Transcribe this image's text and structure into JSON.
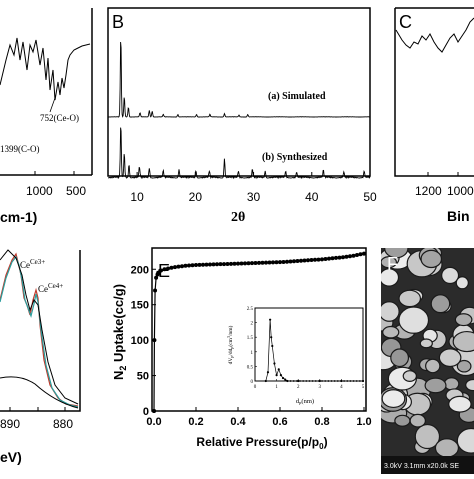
{
  "colors": {
    "axis": "#000000",
    "series_black": "#000000",
    "series_teal": "#2a9d9d",
    "series_red": "#c0392b",
    "sem_bg": "#2b2b2b"
  },
  "panels": {
    "a": {
      "annotations": [
        "752(Ce-O)",
        "1399(C-O)"
      ],
      "x_ticks": [
        "1000",
        "500"
      ],
      "x_label_partial": "cm-1)"
    },
    "b": {
      "letter": "B",
      "series_labels": [
        "(a) Simulated",
        "(b) Synthesized"
      ],
      "x_ticks": [
        "10",
        "20",
        "30",
        "40",
        "50"
      ],
      "x_label": "2θ"
    },
    "c": {
      "letter": "C",
      "x_ticks": [
        "1200",
        "1000"
      ],
      "x_label_partial": "Bin"
    },
    "d": {
      "peak_labels": [
        "Ce3+",
        "Ce4+"
      ],
      "x_ticks": [
        "890",
        "880"
      ],
      "x_label_partial": "eV)"
    },
    "e": {
      "letter": "E",
      "y_label": "N2 Uptake(cc/g)",
      "x_label": "Relative Pressure(p/p0)",
      "y_ticks": [
        "0",
        "50",
        "100",
        "150",
        "200"
      ],
      "x_ticks": [
        "0.0",
        "0.2",
        "0.4",
        "0.6",
        "0.8",
        "1.0"
      ],
      "inset": {
        "y_label": "dVp/ddp(cm3/nm)",
        "x_label": "dp(nm)",
        "y_ticks": [
          "0",
          "0.5",
          "1",
          "1.5",
          "2",
          "2.5"
        ],
        "x_ticks": [
          "0",
          "1",
          "2",
          "3",
          "4",
          "5"
        ]
      }
    },
    "f": {
      "letter": "F",
      "caption": "3.0kV 3.1mm x20.0k SE"
    }
  },
  "chart_data": [
    {
      "panel": "B",
      "type": "line",
      "xlabel": "2θ",
      "xlim": [
        5,
        50
      ],
      "series": [
        {
          "name": "(a) Simulated",
          "peaks": [
            [
              7.2,
              1.0
            ],
            [
              7.8,
              0.25
            ],
            [
              8.5,
              0.12
            ],
            [
              10.5,
              0.05
            ],
            [
              12.1,
              0.08
            ],
            [
              12.6,
              0.07
            ],
            [
              14.5,
              0.03
            ],
            [
              17.0,
              0.03
            ],
            [
              20.2,
              0.03
            ],
            [
              22.5,
              0.03
            ],
            [
              25.0,
              0.04
            ],
            [
              27.5,
              0.02
            ],
            [
              29.0,
              0.03
            ]
          ]
        },
        {
          "name": "(b) Synthesized",
          "peaks": [
            [
              7.2,
              1.0
            ],
            [
              7.8,
              0.45
            ],
            [
              8.6,
              0.25
            ],
            [
              10.4,
              0.2
            ],
            [
              12.1,
              0.18
            ],
            [
              14.5,
              0.12
            ],
            [
              17.2,
              0.15
            ],
            [
              20.1,
              0.13
            ],
            [
              22.4,
              0.12
            ],
            [
              25.0,
              0.35
            ],
            [
              27.4,
              0.12
            ],
            [
              29.8,
              0.15
            ],
            [
              32.0,
              0.12
            ],
            [
              35.5,
              0.12
            ],
            [
              37.4,
              0.1
            ],
            [
              42.0,
              0.13
            ],
            [
              45.5,
              0.1
            ],
            [
              49.0,
              0.12
            ]
          ]
        }
      ]
    },
    {
      "panel": "E",
      "type": "line",
      "xlabel": "Relative Pressure(p/p0)",
      "ylabel": "N2 Uptake(cc/g)",
      "xlim": [
        0,
        1.0
      ],
      "ylim": [
        0,
        230
      ],
      "series": [
        {
          "x": [
            0.0,
            0.002,
            0.005,
            0.01,
            0.02,
            0.03,
            0.05,
            0.08,
            0.1,
            0.15,
            0.2,
            0.3,
            0.4,
            0.5,
            0.6,
            0.7,
            0.8,
            0.9,
            0.95,
            0.98,
            1.0
          ],
          "y": [
            0,
            100,
            170,
            188,
            195,
            198,
            200,
            202,
            203,
            205,
            206,
            207,
            208,
            209,
            210,
            212,
            214,
            217,
            219,
            221,
            222
          ]
        }
      ],
      "inset": {
        "type": "line",
        "xlabel": "dp(nm)",
        "ylabel": "dVp/ddp(cm3/nm)",
        "xlim": [
          0,
          5
        ],
        "ylim": [
          0,
          2.5
        ],
        "x": [
          0.5,
          0.6,
          0.7,
          0.75,
          0.8,
          0.9,
          1.0,
          1.1,
          1.2,
          1.3,
          1.4,
          1.5,
          2.0,
          3.0,
          4.0,
          5.0
        ],
        "y": [
          0.0,
          0.3,
          2.1,
          1.5,
          1.2,
          0.6,
          0.2,
          0.4,
          0.2,
          0.1,
          0.05,
          0.0,
          0.0,
          0.0,
          0.0,
          0.0
        ]
      }
    }
  ]
}
